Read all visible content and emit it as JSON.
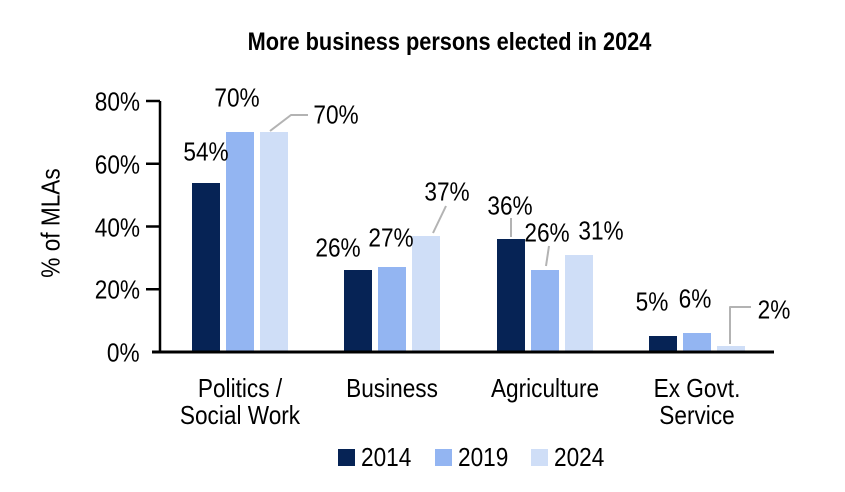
{
  "chart_data": {
    "type": "bar",
    "title": "More business persons elected in 2024",
    "ylabel": "% of MLAs",
    "xlabel": "",
    "ylim": [
      0,
      80
    ],
    "ytick_interval": 20,
    "ytick_labels": [
      "0%",
      "20%",
      "40%",
      "60%",
      "80%"
    ],
    "grid": false,
    "legend_position": "bottom-center",
    "categories": [
      "Politics / Social Work",
      "Business",
      "Agriculture",
      "Ex Govt. Service"
    ],
    "category_display_lines": [
      [
        "Politics /",
        "Social Work"
      ],
      [
        "Business"
      ],
      [
        "Agriculture"
      ],
      [
        "Ex Govt.",
        "Service"
      ]
    ],
    "series": [
      {
        "name": "2014",
        "color": "#062355",
        "values": [
          54,
          26,
          36,
          5
        ]
      },
      {
        "name": "2019",
        "color": "#93B5F2",
        "values": [
          70,
          27,
          26,
          6
        ]
      },
      {
        "name": "2024",
        "color": "#CFDEF7",
        "values": [
          70,
          37,
          31,
          2
        ]
      }
    ],
    "data_label_suffix": "%",
    "colors": {
      "axis": "#000000",
      "text": "#000000",
      "leader_line": "#b3b3b3",
      "background": "#ffffff"
    }
  }
}
